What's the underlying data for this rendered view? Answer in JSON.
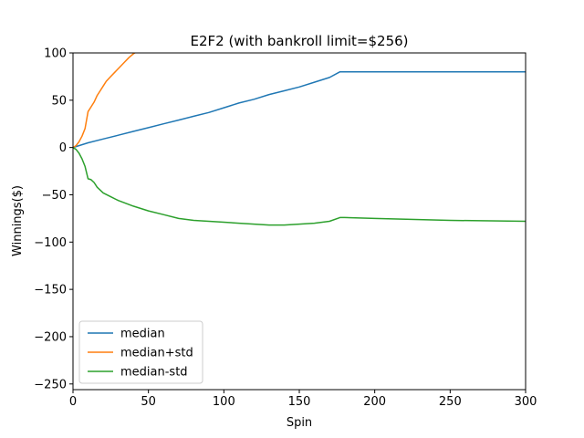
{
  "chart_data": {
    "type": "line",
    "title": "E2F2 (with bankroll limit=$256)",
    "xlabel": "Spin",
    "ylabel": "Winnings($)",
    "xlim": [
      0,
      300
    ],
    "ylim": [
      -256,
      100
    ],
    "xticks": [
      0,
      50,
      100,
      150,
      200,
      250,
      300
    ],
    "xtick_labels": [
      "0",
      "50",
      "100",
      "150",
      "200",
      "250",
      "300"
    ],
    "yticks": [
      -250,
      -200,
      -150,
      -100,
      -50,
      0,
      50,
      100
    ],
    "ytick_labels": [
      "−250",
      "−200",
      "−150",
      "−100",
      "−50",
      "0",
      "50",
      "100"
    ],
    "grid": false,
    "legend_position": "lower-left",
    "series": [
      {
        "name": "median",
        "color": "#1f77b4",
        "x": [
          0,
          10,
          20,
          30,
          40,
          50,
          60,
          70,
          80,
          90,
          100,
          110,
          120,
          130,
          140,
          150,
          160,
          170,
          177,
          180,
          200,
          250,
          300
        ],
        "y": [
          0,
          5,
          9,
          13,
          17,
          21,
          25,
          29,
          33,
          37,
          42,
          47,
          51,
          56,
          60,
          64,
          69,
          74,
          80,
          80,
          80,
          80,
          80
        ]
      },
      {
        "name": "median+std",
        "color": "#ff7f0e",
        "x": [
          0,
          2,
          4,
          6,
          8,
          10,
          12,
          14,
          16,
          18,
          20,
          22,
          25,
          28,
          31,
          34,
          37,
          40,
          41,
          42
        ],
        "y": [
          0,
          2,
          6,
          12,
          20,
          38,
          43,
          48,
          55,
          60,
          65,
          70,
          75,
          80,
          85,
          90,
          95,
          99,
          100,
          101
        ]
      },
      {
        "name": "median-std",
        "color": "#2ca02c",
        "x": [
          0,
          2,
          4,
          6,
          8,
          10,
          12,
          14,
          16,
          18,
          20,
          25,
          30,
          40,
          50,
          60,
          70,
          80,
          90,
          100,
          110,
          120,
          130,
          140,
          150,
          160,
          170,
          177,
          180,
          200,
          250,
          300
        ],
        "y": [
          0,
          -2,
          -6,
          -12,
          -20,
          -33,
          -34,
          -37,
          -42,
          -45,
          -48,
          -52,
          -56,
          -62,
          -67,
          -71,
          -75,
          -77,
          -78,
          -79,
          -80,
          -81,
          -82,
          -82,
          -81,
          -80,
          -78,
          -74,
          -74,
          -75,
          -77,
          -78
        ]
      }
    ]
  }
}
